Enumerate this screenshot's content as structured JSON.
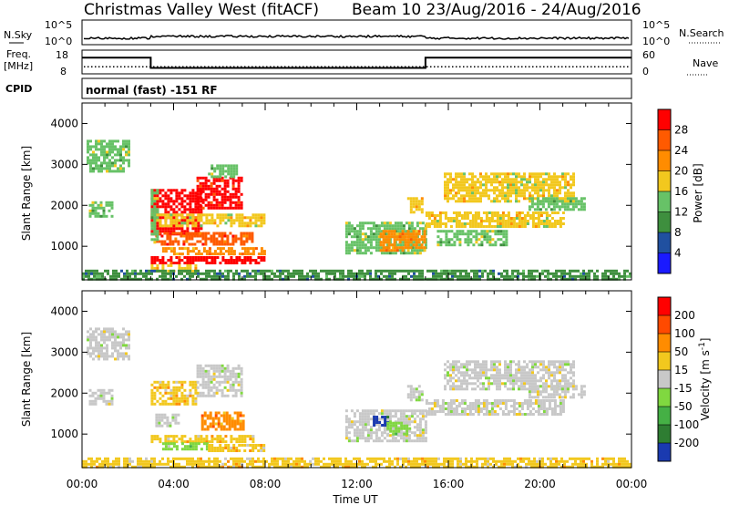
{
  "header": {
    "station": "Christmas Valley West (fitACF)",
    "beam_date": "Beam 10 23/Aug/2016 - 24/Aug/2016"
  },
  "top_panels": {
    "nsky_label": "N.Sky",
    "nsky_ticks": [
      "10^5",
      "10^0"
    ],
    "nsearch_label": "N.Search",
    "freq_label_1": "Freq.",
    "freq_label_2": "[MHz]",
    "freq_ticks": [
      "18",
      "8"
    ],
    "nave_ticks": [
      "60",
      "0"
    ],
    "nave_label": "Nave",
    "cpid_label": "CPID",
    "cpid_value": "normal (fast) -151 RF",
    "frequency_trace": [
      {
        "t": 0,
        "mhz": 14.8
      },
      {
        "t": 3.0,
        "mhz": 14.8
      },
      {
        "t": 3.0,
        "mhz": 10.5
      },
      {
        "t": 15.0,
        "mhz": 10.5
      },
      {
        "t": 15.0,
        "mhz": 14.8
      },
      {
        "t": 24,
        "mhz": 14.8
      }
    ],
    "nave_level": 18
  },
  "chart_data": [
    {
      "type": "heatmap",
      "panel": "power",
      "ylabel": "Slant Range [km]",
      "x_unit": "UT hours",
      "xlim": [
        0,
        24
      ],
      "ylim": [
        180,
        4500
      ],
      "yticks": [
        "1000",
        "2000",
        "3000",
        "4000"
      ],
      "colorbar_label": "Power [dB]",
      "colorbar_ticks": [
        "4",
        "8",
        "12",
        "16",
        "20",
        "24",
        "28"
      ],
      "colorbar_colors": [
        "#1a1aff",
        "#2050a0",
        "#3e8f3e",
        "#67c267",
        "#f2c81e",
        "#ff8c00",
        "#ff5a00",
        "#ff0000"
      ],
      "patches": [
        {
          "t0": 0.2,
          "t1": 2.0,
          "r0": 2800,
          "r1": 3600,
          "level": 3
        },
        {
          "t0": 0.3,
          "t1": 1.3,
          "r0": 1700,
          "r1": 2100,
          "level": 3
        },
        {
          "t0": 3.0,
          "t1": 5.2,
          "r0": 1300,
          "r1": 2400,
          "level": 8
        },
        {
          "t0": 5.0,
          "t1": 7.0,
          "r0": 1900,
          "r1": 2700,
          "level": 7
        },
        {
          "t0": 3.0,
          "t1": 8.0,
          "r0": 1500,
          "r1": 1800,
          "level": 4
        },
        {
          "t0": 3.2,
          "t1": 7.5,
          "r0": 1050,
          "r1": 1350,
          "level": 6
        },
        {
          "t0": 3.5,
          "t1": 8.0,
          "r0": 820,
          "r1": 980,
          "level": 5
        },
        {
          "t0": 3.0,
          "t1": 8.0,
          "r0": 600,
          "r1": 760,
          "level": 7
        },
        {
          "t0": 3.0,
          "t1": 5.0,
          "r0": 380,
          "r1": 560,
          "level": 4
        },
        {
          "t0": 3.0,
          "t1": 3.3,
          "r0": 1100,
          "r1": 2400,
          "level": 3
        },
        {
          "t0": 5.5,
          "t1": 6.8,
          "r0": 2700,
          "r1": 3000,
          "level": 3
        },
        {
          "t0": 0.0,
          "t1": 24.0,
          "r0": 180,
          "r1": 430,
          "level": 2
        },
        {
          "t0": 11.5,
          "t1": 15.0,
          "r0": 800,
          "r1": 1600,
          "level": 3
        },
        {
          "t0": 13.0,
          "t1": 15.0,
          "r0": 900,
          "r1": 1400,
          "level": 5
        },
        {
          "t0": 15.0,
          "t1": 21.0,
          "r0": 1450,
          "r1": 1850,
          "level": 4
        },
        {
          "t0": 15.5,
          "t1": 18.5,
          "r0": 1000,
          "r1": 1400,
          "level": 3
        },
        {
          "t0": 14.2,
          "t1": 14.8,
          "r0": 1850,
          "r1": 2200,
          "level": 4
        },
        {
          "t0": 15.8,
          "t1": 21.5,
          "r0": 2100,
          "r1": 2800,
          "level": 4
        },
        {
          "t0": 19.5,
          "t1": 22.0,
          "r0": 1900,
          "r1": 2200,
          "level": 3
        }
      ]
    },
    {
      "type": "heatmap",
      "panel": "velocity",
      "ylabel": "Slant Range [km]",
      "xlabel": "Time UT",
      "x_unit": "UT hours",
      "xlim": [
        0,
        24
      ],
      "ylim": [
        180,
        4500
      ],
      "yticks": [
        "1000",
        "2000",
        "3000",
        "4000"
      ],
      "xticks": [
        "00:00",
        "04:00",
        "08:00",
        "12:00",
        "16:00",
        "20:00",
        "00:00"
      ],
      "colorbar_label": "Velocity [m s^-1]",
      "colorbar_ticks": [
        "200",
        "100",
        "50",
        "15",
        "-15",
        "-50",
        "-100",
        "-200"
      ],
      "colorbar_colors": [
        "#1a3ab0",
        "#2e7d32",
        "#45b045",
        "#80d840",
        "#c8c8c8",
        "#f2c81e",
        "#ff8c00",
        "#ff4a00",
        "#ff0000"
      ],
      "patches": [
        {
          "t0": 0.2,
          "t1": 2.0,
          "r0": 2800,
          "r1": 3600,
          "level": 4
        },
        {
          "t0": 0.3,
          "t1": 1.3,
          "r0": 1700,
          "r1": 2100,
          "level": 4
        },
        {
          "t0": 3.0,
          "t1": 5.0,
          "r0": 1700,
          "r1": 2300,
          "level": 5
        },
        {
          "t0": 5.0,
          "t1": 7.0,
          "r0": 1900,
          "r1": 2700,
          "level": 4
        },
        {
          "t0": 5.2,
          "t1": 7.0,
          "r0": 1100,
          "r1": 1550,
          "level": 6
        },
        {
          "t0": 3.2,
          "t1": 4.2,
          "r0": 1200,
          "r1": 1500,
          "level": 4
        },
        {
          "t0": 3.0,
          "t1": 7.5,
          "r0": 820,
          "r1": 980,
          "level": 5
        },
        {
          "t0": 3.5,
          "t1": 5.5,
          "r0": 600,
          "r1": 800,
          "level": 3
        },
        {
          "t0": 5.5,
          "t1": 8.0,
          "r0": 600,
          "r1": 760,
          "level": 5
        },
        {
          "t0": 0.0,
          "t1": 24.0,
          "r0": 180,
          "r1": 430,
          "level": 5
        },
        {
          "t0": 11.5,
          "t1": 15.0,
          "r0": 800,
          "r1": 1600,
          "level": 4
        },
        {
          "t0": 12.7,
          "t1": 13.3,
          "r0": 1200,
          "r1": 1450,
          "level": 0
        },
        {
          "t0": 13.3,
          "t1": 14.3,
          "r0": 1000,
          "r1": 1300,
          "level": 3
        },
        {
          "t0": 15.0,
          "t1": 21.0,
          "r0": 1450,
          "r1": 1850,
          "level": 4
        },
        {
          "t0": 15.8,
          "t1": 21.5,
          "r0": 2100,
          "r1": 2800,
          "level": 4
        },
        {
          "t0": 14.2,
          "t1": 14.8,
          "r0": 1850,
          "r1": 2200,
          "level": 4
        },
        {
          "t0": 19.5,
          "t1": 22.0,
          "r0": 1900,
          "r1": 2200,
          "level": 4
        }
      ]
    }
  ]
}
